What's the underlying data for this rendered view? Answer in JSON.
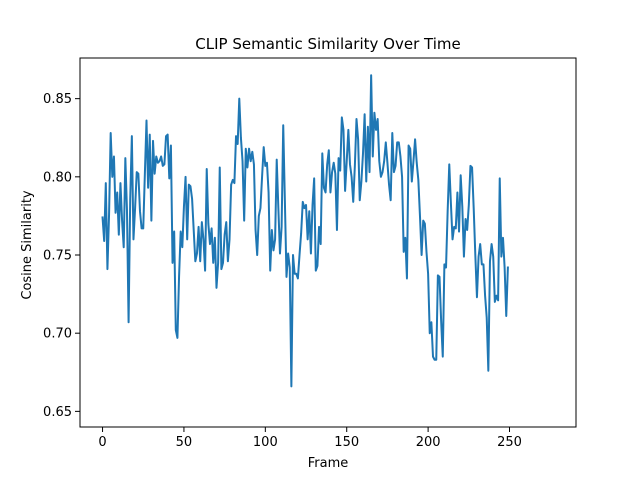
{
  "chart_data": {
    "type": "line",
    "title": "CLIP Semantic Similarity Over Time",
    "xlabel": "Frame",
    "ylabel": "Cosine Similarity",
    "xlim": [
      -13.85,
      290.85
    ],
    "ylim": [
      0.64,
      0.876
    ],
    "x_ticks": [
      0,
      50,
      100,
      150,
      200,
      250
    ],
    "y_ticks": [
      0.65,
      0.7,
      0.75,
      0.8,
      0.85
    ],
    "y_tick_labels": [
      "0.65",
      "0.70",
      "0.75",
      "0.80",
      "0.85"
    ],
    "grid": false,
    "legend": "none",
    "line_color": "#1f77b4",
    "series": [
      {
        "x_start": 0,
        "x_step": 1,
        "values": [
          0.774,
          0.759,
          0.796,
          0.741,
          0.776,
          0.828,
          0.8,
          0.813,
          0.777,
          0.79,
          0.763,
          0.796,
          0.772,
          0.755,
          0.812,
          0.779,
          0.707,
          0.786,
          0.826,
          0.76,
          0.78,
          0.803,
          0.802,
          0.778,
          0.767,
          0.767,
          0.802,
          0.836,
          0.793,
          0.827,
          0.772,
          0.823,
          0.802,
          0.813,
          0.809,
          0.81,
          0.813,
          0.807,
          0.808,
          0.826,
          0.827,
          0.799,
          0.82,
          0.745,
          0.765,
          0.702,
          0.697,
          0.736,
          0.765,
          0.755,
          0.781,
          0.8,
          0.76,
          0.795,
          0.794,
          0.786,
          0.766,
          0.746,
          0.751,
          0.768,
          0.746,
          0.771,
          0.76,
          0.74,
          0.805,
          0.77,
          0.757,
          0.767,
          0.745,
          0.761,
          0.729,
          0.745,
          0.806,
          0.741,
          0.745,
          0.763,
          0.771,
          0.746,
          0.76,
          0.795,
          0.798,
          0.796,
          0.826,
          0.821,
          0.85,
          0.825,
          0.81,
          0.772,
          0.818,
          0.806,
          0.818,
          0.81,
          0.816,
          0.808,
          0.766,
          0.75,
          0.775,
          0.78,
          0.8,
          0.819,
          0.807,
          0.809,
          0.79,
          0.74,
          0.766,
          0.753,
          0.76,
          0.811,
          0.78,
          0.751,
          0.768,
          0.833,
          0.785,
          0.736,
          0.751,
          0.742,
          0.666,
          0.75,
          0.738,
          0.738,
          0.735,
          0.75,
          0.764,
          0.784,
          0.78,
          0.782,
          0.76,
          0.778,
          0.751,
          0.782,
          0.799,
          0.74,
          0.743,
          0.768,
          0.757,
          0.815,
          0.793,
          0.79,
          0.808,
          0.817,
          0.79,
          0.803,
          0.809,
          0.802,
          0.766,
          0.812,
          0.804,
          0.838,
          0.83,
          0.791,
          0.81,
          0.83,
          0.808,
          0.8,
          0.784,
          0.807,
          0.837,
          0.824,
          0.785,
          0.797,
          0.815,
          0.84,
          0.797,
          0.832,
          0.803,
          0.865,
          0.813,
          0.841,
          0.83,
          0.837,
          0.81,
          0.8,
          0.803,
          0.81,
          0.822,
          0.809,
          0.795,
          0.785,
          0.828,
          0.803,
          0.807,
          0.822,
          0.822,
          0.813,
          0.8,
          0.752,
          0.761,
          0.735,
          0.82,
          0.818,
          0.797,
          0.81,
          0.824,
          0.809,
          0.798,
          0.775,
          0.75,
          0.772,
          0.77,
          0.752,
          0.738,
          0.7,
          0.707,
          0.685,
          0.683,
          0.683,
          0.737,
          0.736,
          0.708,
          0.685,
          0.744,
          0.742,
          0.778,
          0.808,
          0.783,
          0.76,
          0.768,
          0.767,
          0.79,
          0.765,
          0.801,
          0.781,
          0.749,
          0.773,
          0.766,
          0.782,
          0.807,
          0.806,
          0.78,
          0.75,
          0.723,
          0.749,
          0.757,
          0.744,
          0.744,
          0.724,
          0.71,
          0.676,
          0.746,
          0.757,
          0.749,
          0.72,
          0.724,
          0.721,
          0.799,
          0.749,
          0.761,
          0.742,
          0.711,
          0.742
        ]
      }
    ]
  }
}
